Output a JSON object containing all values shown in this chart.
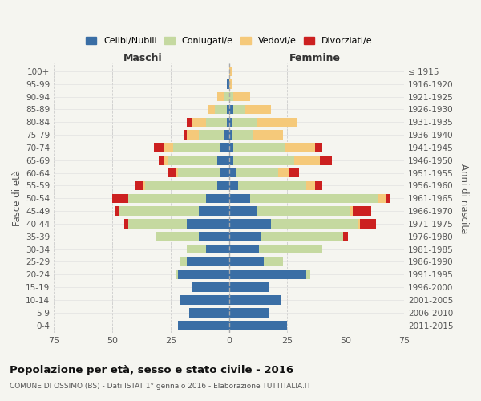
{
  "age_groups": [
    "0-4",
    "5-9",
    "10-14",
    "15-19",
    "20-24",
    "25-29",
    "30-34",
    "35-39",
    "40-44",
    "45-49",
    "50-54",
    "55-59",
    "60-64",
    "65-69",
    "70-74",
    "75-79",
    "80-84",
    "85-89",
    "90-94",
    "95-99",
    "100+"
  ],
  "birth_years": [
    "2011-2015",
    "2006-2010",
    "2001-2005",
    "1996-2000",
    "1991-1995",
    "1986-1990",
    "1981-1985",
    "1976-1980",
    "1971-1975",
    "1966-1970",
    "1961-1965",
    "1956-1960",
    "1951-1955",
    "1946-1950",
    "1941-1945",
    "1936-1940",
    "1931-1935",
    "1926-1930",
    "1921-1925",
    "1916-1920",
    "≤ 1915"
  ],
  "maschi": {
    "celibe": [
      22,
      17,
      21,
      16,
      22,
      18,
      10,
      13,
      18,
      13,
      10,
      5,
      4,
      5,
      4,
      2,
      1,
      1,
      0,
      1,
      0
    ],
    "coniugato": [
      0,
      0,
      0,
      0,
      1,
      3,
      8,
      18,
      25,
      34,
      33,
      31,
      18,
      21,
      20,
      11,
      9,
      5,
      2,
      0,
      0
    ],
    "vedovo": [
      0,
      0,
      0,
      0,
      0,
      0,
      0,
      0,
      0,
      0,
      0,
      1,
      1,
      2,
      4,
      5,
      6,
      3,
      3,
      0,
      0
    ],
    "divorziato": [
      0,
      0,
      0,
      0,
      0,
      0,
      0,
      0,
      2,
      2,
      7,
      3,
      3,
      2,
      4,
      1,
      2,
      0,
      0,
      0,
      0
    ]
  },
  "femmine": {
    "nubile": [
      25,
      17,
      22,
      17,
      33,
      15,
      13,
      14,
      18,
      12,
      9,
      4,
      3,
      2,
      2,
      1,
      1,
      2,
      0,
      0,
      0
    ],
    "coniugata": [
      0,
      0,
      0,
      0,
      2,
      8,
      27,
      35,
      37,
      40,
      55,
      29,
      18,
      26,
      22,
      9,
      11,
      5,
      2,
      0,
      0
    ],
    "vedova": [
      0,
      0,
      0,
      0,
      0,
      0,
      0,
      0,
      1,
      1,
      3,
      4,
      5,
      11,
      13,
      13,
      17,
      11,
      7,
      1,
      1
    ],
    "divorziata": [
      0,
      0,
      0,
      0,
      0,
      0,
      0,
      2,
      7,
      8,
      2,
      3,
      4,
      5,
      3,
      0,
      0,
      0,
      0,
      0,
      0
    ]
  },
  "colors": {
    "celibe": "#3a6ea5",
    "coniugato": "#c5d9a0",
    "vedovo": "#f5c97a",
    "divorziato": "#cc2020"
  },
  "xlim": 75,
  "title": "Popolazione per età, sesso e stato civile - 2016",
  "subtitle": "COMUNE DI OSSIMO (BS) - Dati ISTAT 1° gennaio 2016 - Elaborazione TUTTITALIA.IT",
  "ylabel_left": "Fasce di età",
  "ylabel_right": "Anni di nascita",
  "xlabel_left": "Maschi",
  "xlabel_right": "Femmine",
  "bg_color": "#f5f5f0",
  "legend_labels": [
    "Celibi/Nubili",
    "Coniugati/e",
    "Vedovi/e",
    "Divorziati/e"
  ]
}
